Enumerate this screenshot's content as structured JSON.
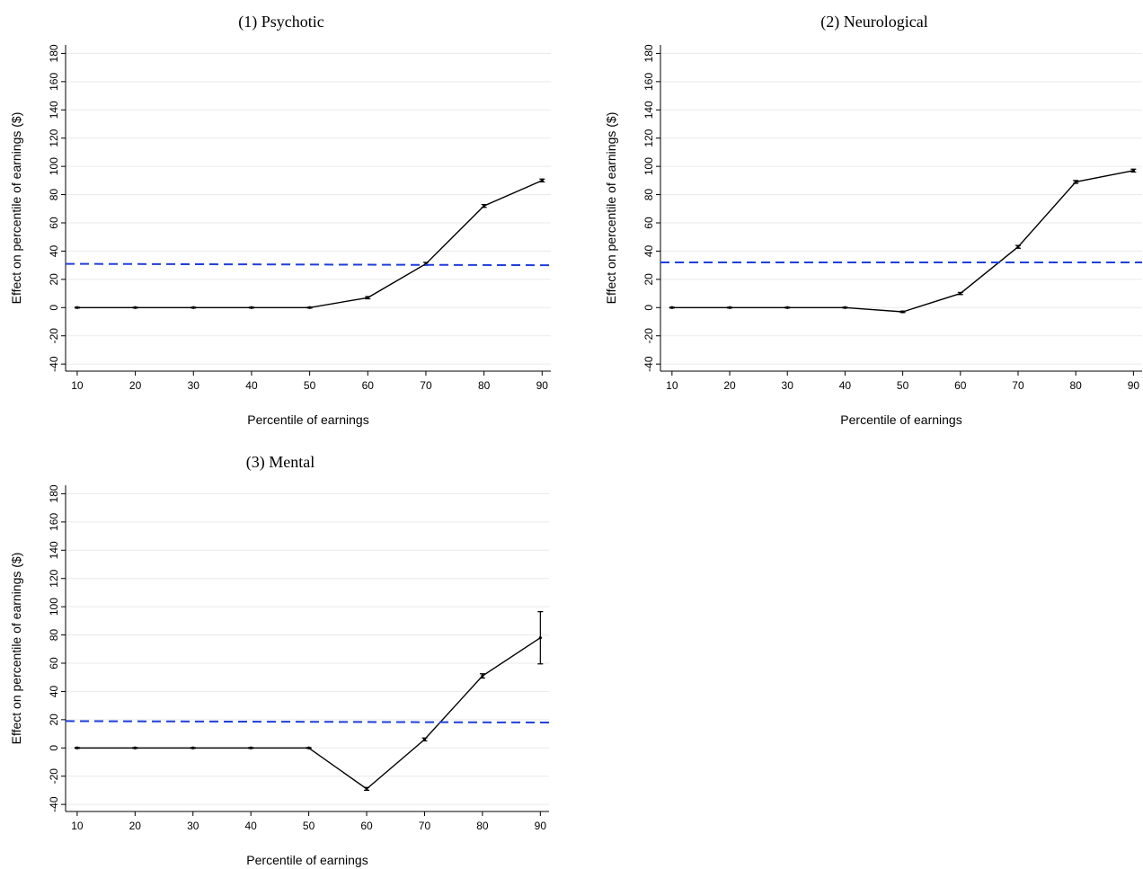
{
  "chart_data": [
    {
      "type": "line",
      "title": "(1) Psychotic",
      "xlabel": "Percentile of earnings",
      "ylabel": "Effect on percentile of earnings ($)",
      "x": [
        10,
        20,
        30,
        40,
        50,
        60,
        70,
        80,
        90
      ],
      "series": [
        {
          "color": "#000000",
          "values": [
            0,
            0,
            0,
            0,
            0,
            7,
            31,
            72,
            90
          ],
          "errors": [
            0.3,
            0.3,
            0.3,
            0.3,
            0.3,
            0.8,
            1,
            1,
            1
          ]
        },
        {
          "color": "#1f3fdc",
          "dashed": true,
          "x": [
            8,
            91.5
          ],
          "values": [
            31,
            30
          ]
        }
      ],
      "xlim": [
        8,
        91.5
      ],
      "ylim": [
        -45,
        186
      ],
      "xticks": [
        10,
        20,
        30,
        40,
        50,
        60,
        70,
        80,
        90
      ],
      "yticks": [
        -40,
        -20,
        0,
        20,
        40,
        60,
        80,
        100,
        120,
        140,
        160,
        180
      ],
      "grid": true
    },
    {
      "type": "line",
      "title": "(2) Neurological",
      "xlabel": "Percentile of earnings",
      "ylabel": "Effect on percentile of earnings ($)",
      "x": [
        10,
        20,
        30,
        40,
        50,
        60,
        70,
        80,
        90
      ],
      "series": [
        {
          "color": "#000000",
          "values": [
            0,
            0,
            0,
            0,
            -3,
            10,
            43,
            89,
            97
          ],
          "errors": [
            0.3,
            0.3,
            0.3,
            0.3,
            0.5,
            0.8,
            1,
            1,
            1
          ]
        },
        {
          "color": "#1f3fdc",
          "dashed": true,
          "x": [
            8,
            91.5
          ],
          "values": [
            32,
            32
          ]
        }
      ],
      "xlim": [
        8,
        91.5
      ],
      "ylim": [
        -45,
        186
      ],
      "xticks": [
        10,
        20,
        30,
        40,
        50,
        60,
        70,
        80,
        90
      ],
      "yticks": [
        -40,
        -20,
        0,
        20,
        40,
        60,
        80,
        100,
        120,
        140,
        160,
        180
      ],
      "grid": true
    },
    {
      "type": "line",
      "title": "(3) Mental",
      "xlabel": "Percentile of earnings",
      "ylabel": "Effect on percentile of earnings ($)",
      "x": [
        10,
        20,
        30,
        40,
        50,
        60,
        70,
        80,
        90
      ],
      "series": [
        {
          "color": "#000000",
          "values": [
            0,
            0,
            0,
            0,
            0,
            -29,
            6,
            51,
            78
          ],
          "errors": [
            0.3,
            0.3,
            0.3,
            0.3,
            0.3,
            1,
            1,
            1.5,
            18.5
          ]
        },
        {
          "color": "#1f3fdc",
          "dashed": true,
          "x": [
            8,
            91.5
          ],
          "values": [
            19,
            18
          ]
        }
      ],
      "xlim": [
        8,
        91.5
      ],
      "ylim": [
        -45,
        186
      ],
      "xticks": [
        10,
        20,
        30,
        40,
        50,
        60,
        70,
        80,
        90
      ],
      "yticks": [
        -40,
        -20,
        0,
        20,
        40,
        60,
        80,
        100,
        120,
        140,
        160,
        180
      ],
      "grid": true
    }
  ]
}
